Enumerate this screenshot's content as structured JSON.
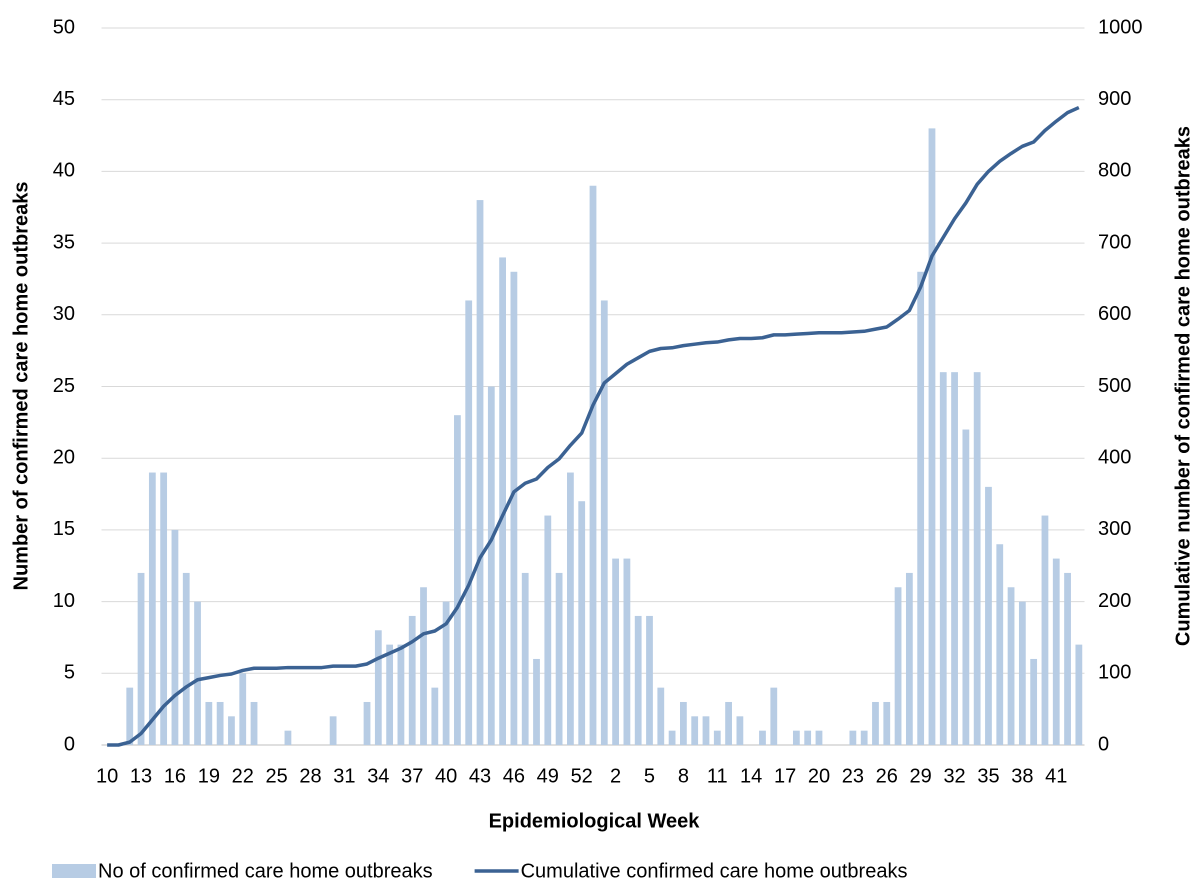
{
  "chart_data": {
    "type": "bar-line",
    "x_label": "Epidemiological Week",
    "y_label": "Number of confirmed care home outbreaks",
    "y2_label": "Cumulative number of confirmed care home outbreaks",
    "categories": [
      "10",
      null,
      null,
      "13",
      null,
      null,
      "16",
      null,
      null,
      "19",
      null,
      null,
      "22",
      null,
      null,
      "25",
      null,
      null,
      "28",
      null,
      null,
      "31",
      null,
      null,
      "34",
      null,
      null,
      "37",
      null,
      null,
      "40",
      null,
      null,
      "43",
      null,
      null,
      "46",
      null,
      null,
      "49",
      null,
      null,
      "52",
      null,
      null,
      "2",
      null,
      null,
      "5",
      null,
      null,
      "8",
      null,
      null,
      "11",
      null,
      null,
      "14",
      null,
      null,
      "17",
      null,
      null,
      "20",
      null,
      null,
      "23",
      null,
      null,
      "26",
      null,
      null,
      "29",
      null,
      null,
      "32",
      null,
      null,
      "35",
      null,
      null,
      "38",
      null,
      null,
      "41",
      null,
      null
    ],
    "series": [
      {
        "name": "No of confirmed care home outbreaks",
        "type": "bar",
        "color": "#b7cce4",
        "values": [
          0,
          0,
          4,
          12,
          19,
          19,
          15,
          12,
          10,
          3,
          3,
          2,
          5,
          3,
          0,
          0,
          1,
          0,
          0,
          0,
          2,
          0,
          0,
          3,
          8,
          7,
          7,
          9,
          11,
          4,
          10,
          23,
          31,
          38,
          25,
          34,
          33,
          12,
          6,
          16,
          12,
          19,
          17,
          39,
          31,
          13,
          13,
          9,
          9,
          4,
          1,
          3,
          2,
          2,
          1,
          3,
          2,
          0,
          1,
          4,
          0,
          1,
          1,
          1,
          0,
          0,
          1,
          1,
          3,
          3,
          11,
          12,
          33,
          43,
          26,
          26,
          22,
          26,
          18,
          14,
          11,
          10,
          6,
          16,
          13,
          12,
          7
        ]
      },
      {
        "name": "Cumulative confirmed care home outbreaks",
        "type": "line",
        "axis": "y2",
        "color": "#3b6293",
        "values": [
          0,
          0,
          4,
          16,
          35,
          54,
          69,
          81,
          91,
          94,
          97,
          99,
          104,
          107,
          107,
          107,
          108,
          108,
          108,
          108,
          110,
          110,
          110,
          113,
          121,
          128,
          135,
          144,
          155,
          159,
          169,
          192,
          223,
          261,
          286,
          320,
          353,
          365,
          371,
          387,
          399,
          418,
          435,
          474,
          505,
          518,
          531,
          540,
          549,
          553,
          554,
          557,
          559,
          561,
          562,
          565,
          567,
          567,
          568,
          572,
          572,
          573,
          574,
          575,
          575,
          575,
          576,
          577,
          580,
          583,
          594,
          606,
          639,
          682,
          708,
          734,
          756,
          782,
          800,
          814,
          825,
          835,
          841,
          857,
          870,
          882,
          889
        ]
      }
    ],
    "ylim": [
      0,
      50
    ],
    "yticks": [
      0,
      5,
      10,
      15,
      20,
      25,
      30,
      35,
      40,
      45,
      50
    ],
    "y2lim": [
      0,
      1000
    ],
    "y2ticks": [
      0,
      100,
      200,
      300,
      400,
      500,
      600,
      700,
      800,
      900,
      1000
    ],
    "grid": true,
    "legend": "bottom"
  }
}
